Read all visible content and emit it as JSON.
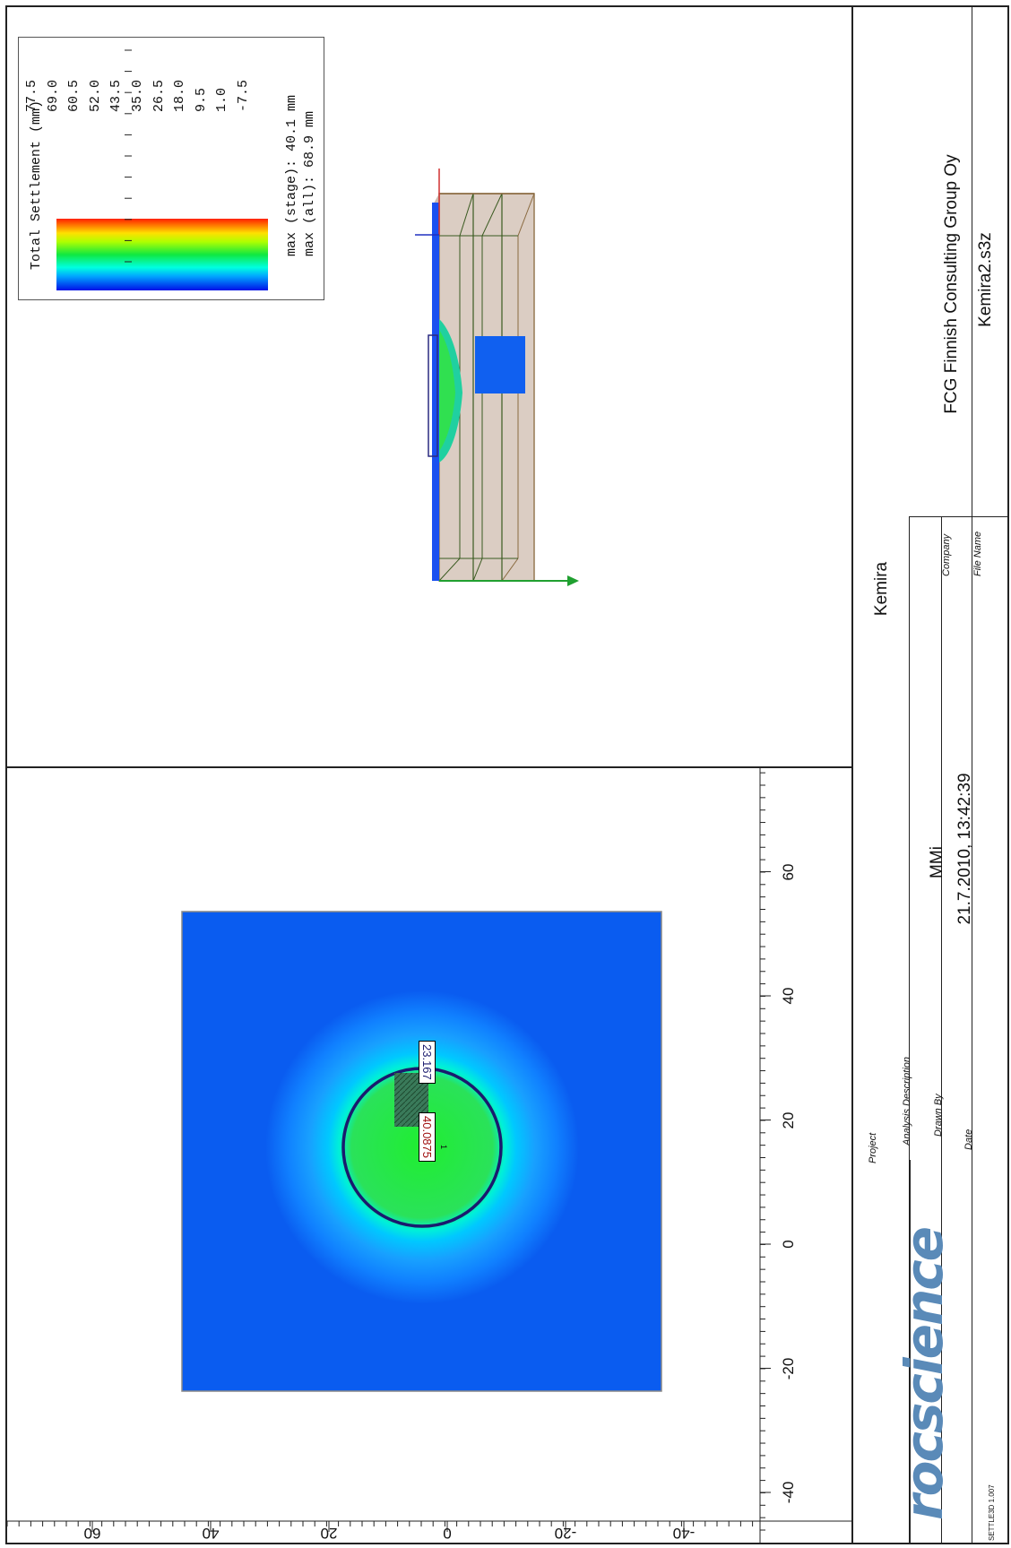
{
  "legend": {
    "title": "Total Settlement (mm)",
    "ticks": [
      "-7.5",
      "1.0",
      "9.5",
      "18.0",
      "26.5",
      "35.0",
      "43.5",
      "52.0",
      "60.5",
      "69.0",
      "77.5"
    ],
    "max_stage": "max (stage): 40.1 mm",
    "max_all": "max (all):   68.9 mm",
    "colors": [
      "#0000ff",
      "#00b4ff",
      "#00ffe0",
      "#00ff60",
      "#80ff00",
      "#ffff00",
      "#ff8000",
      "#ff0000"
    ]
  },
  "plan_view": {
    "x_ticks": [
      "-40",
      "-20",
      "0",
      "20",
      "40",
      "60"
    ],
    "y_ticks": [
      "60",
      "40",
      "20",
      "0",
      "-20",
      "-40"
    ],
    "label_a": "23.167",
    "label_b": "40.0875",
    "marker": "1"
  },
  "title_block": {
    "project_label": "Project",
    "project": "Kemira",
    "analysis_label": "Analysis Description",
    "analysis": "",
    "drawn_by_label": "Drawn By",
    "drawn_by": "MMi",
    "company_label": "Company",
    "company": "FCG Finnish Consulting Group Oy",
    "date_label": "Date",
    "date": "21.7.2010, 13:42:39",
    "file_label": "File Name",
    "file": "Kemira2.s3z",
    "logo_text": "rocscience",
    "version": "SETTLE3D 1.007"
  },
  "colors": {
    "background_blue": "#0a5cf0",
    "green": "#22e03a",
    "circle": "#1a1a6e"
  }
}
